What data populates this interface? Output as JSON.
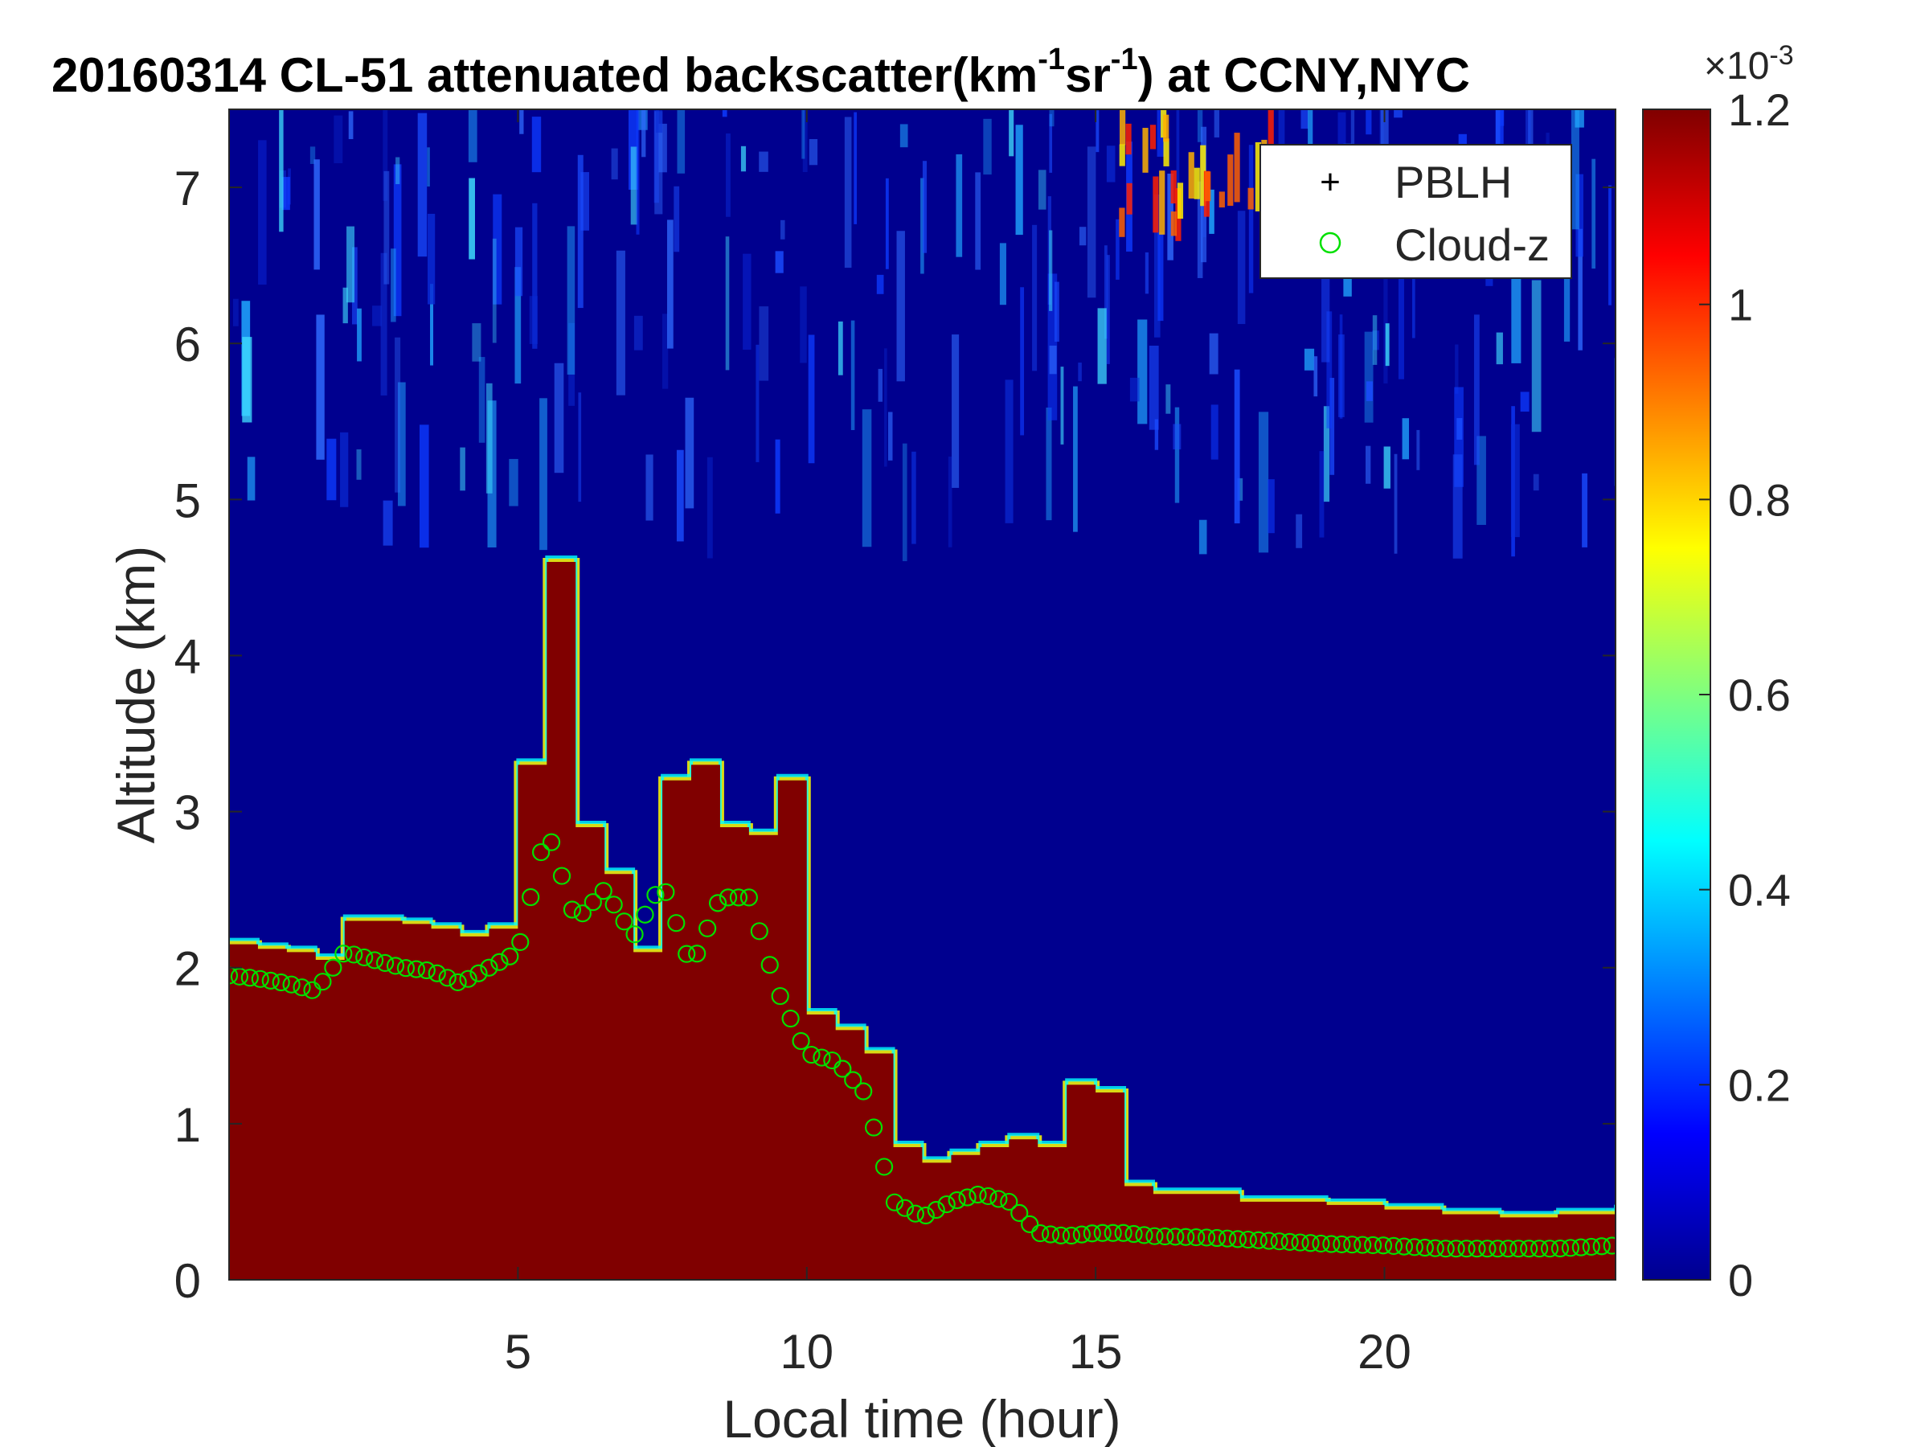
{
  "chart_data": {
    "type": "heatmap",
    "title": "20160314  CL-51 attenuated backscatter(km",
    "title_sup1": "-1",
    "title_mid": "sr",
    "title_sup2": "-1",
    "title_end": ") at CCNY,NYC",
    "xlabel": "Local time (hour)",
    "ylabel": "Altitude (km)",
    "xlim": [
      0,
      24
    ],
    "ylim": [
      0,
      7.5
    ],
    "x_ticks": [
      "5",
      "10",
      "15",
      "20"
    ],
    "y_ticks": [
      "0",
      "1",
      "2",
      "3",
      "4",
      "5",
      "6",
      "7"
    ],
    "colorbar": {
      "colormap": "jet",
      "range": [
        0,
        0.0012
      ],
      "exponent_label": "×10",
      "exponent_sup": "-3",
      "ticks": [
        "0",
        "0.2",
        "0.4",
        "0.6",
        "0.8",
        "1",
        "1.2"
      ]
    },
    "legend": {
      "position": "top-right",
      "entries": [
        {
          "name": "PBLH",
          "marker": "+",
          "color": "#000000"
        },
        {
          "name": "Cloud-z",
          "marker": "o",
          "color": "#00e000"
        }
      ]
    },
    "aerosol_layer_top_km": {
      "x": [
        0,
        0.5,
        1,
        1.5,
        2,
        2.5,
        3,
        3.5,
        4,
        4.5,
        5,
        5.5,
        6,
        6.5,
        7,
        7.5,
        8,
        8.5,
        9,
        9.5,
        10,
        10.5,
        11,
        11.5,
        12,
        12.5,
        13,
        13.5,
        14,
        14.5,
        15,
        15.5,
        16,
        16.5,
        17,
        17.5,
        18,
        19,
        20,
        21,
        22,
        23,
        24
      ],
      "y": [
        2.15,
        2.12,
        2.1,
        2.05,
        2.3,
        2.3,
        2.28,
        2.25,
        2.2,
        2.25,
        3.3,
        4.6,
        2.9,
        2.6,
        2.1,
        3.2,
        3.3,
        2.9,
        2.85,
        3.2,
        1.7,
        1.6,
        1.45,
        0.85,
        0.75,
        0.8,
        0.85,
        0.9,
        0.85,
        1.25,
        1.2,
        0.6,
        0.55,
        0.55,
        0.55,
        0.5,
        0.5,
        0.48,
        0.45,
        0.42,
        0.4,
        0.42,
        0.45
      ]
    },
    "cloud_z_km": {
      "x": [
        0,
        0.5,
        1,
        1.5,
        2,
        2.5,
        3,
        3.5,
        4,
        4.5,
        5,
        5.5,
        6,
        6.5,
        7,
        7.5,
        8,
        8.5,
        9,
        9.5,
        10,
        10.5,
        11,
        11.5,
        12,
        12.5,
        13,
        13.5,
        14,
        14.5,
        15,
        15.5,
        16,
        17,
        18,
        19,
        20,
        21,
        22,
        23,
        24
      ],
      "y": [
        1.95,
        1.93,
        1.9,
        1.85,
        2.1,
        2.05,
        2.0,
        1.98,
        1.9,
        2.0,
        2.1,
        2.9,
        2.3,
        2.5,
        2.2,
        2.55,
        2.0,
        2.45,
        2.45,
        1.85,
        1.45,
        1.4,
        1.2,
        0.5,
        0.4,
        0.5,
        0.55,
        0.5,
        0.3,
        0.28,
        0.3,
        0.3,
        0.28,
        0.27,
        0.25,
        0.23,
        0.22,
        0.2,
        0.2,
        0.2,
        0.22
      ]
    }
  }
}
